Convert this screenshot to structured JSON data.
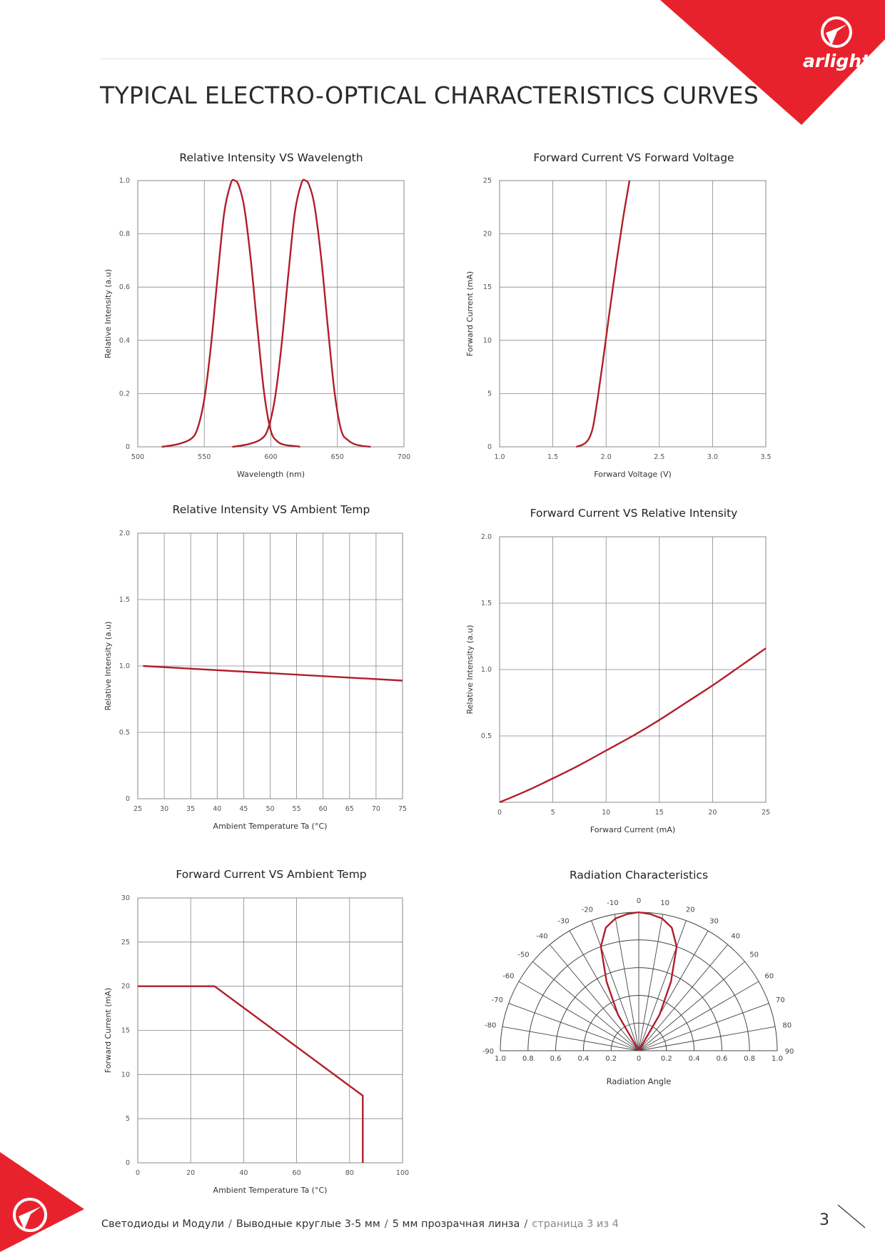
{
  "page": {
    "title": "TYPICAL ELECTRO-OPTICAL CHARACTERISTICS CURVES",
    "brand": "arlight",
    "brand_color": "#e8222c",
    "curve_color": "#b11e2a",
    "grid_color": "#888888"
  },
  "footer": {
    "part1": "Светодиоды и Модули",
    "part2": "Выводные круглые 3-5 мм",
    "part3": "5 мм прозрачная линза",
    "part4": "страница 3 из 4",
    "separator": "/",
    "page_number": "3"
  },
  "chart_data": [
    {
      "id": "wavelength",
      "type": "line",
      "title": "Relative Intensity VS Wavelength",
      "xlabel": "Wavelength (nm)",
      "ylabel": "Relative Intensity (a.u)",
      "xlim": [
        500,
        700
      ],
      "ylim": [
        0,
        1.0
      ],
      "x_ticks": [
        500,
        550,
        600,
        650,
        700
      ],
      "x_tick_labels": [
        "500",
        "550",
        "600",
        "650",
        "700"
      ],
      "y_ticks": [
        0,
        0.2,
        0.4,
        0.6,
        0.8,
        1.0
      ],
      "y_tick_labels": [
        "0",
        "0.2",
        "0.4",
        "0.6",
        "0.8",
        "1.0"
      ],
      "grid": true,
      "series": [
        {
          "x": [
            518,
            530,
            540,
            545,
            550,
            555,
            560,
            565,
            570,
            573,
            576,
            580,
            585,
            590,
            595,
            600,
            605,
            610,
            615,
            620,
            622
          ],
          "y": [
            0,
            0.01,
            0.03,
            0.07,
            0.18,
            0.38,
            0.64,
            0.88,
            0.99,
            1.0,
            0.98,
            0.9,
            0.7,
            0.44,
            0.2,
            0.06,
            0.02,
            0.008,
            0.004,
            0.002,
            0
          ]
        },
        {
          "x": [
            571,
            583,
            593,
            598,
            603,
            608,
            613,
            618,
            623,
            626,
            629,
            633,
            638,
            643,
            648,
            653,
            658,
            663,
            668,
            673,
            675
          ],
          "y": [
            0,
            0.01,
            0.03,
            0.07,
            0.18,
            0.38,
            0.64,
            0.88,
            0.99,
            1.0,
            0.98,
            0.9,
            0.7,
            0.44,
            0.2,
            0.06,
            0.025,
            0.01,
            0.004,
            0.001,
            0
          ]
        }
      ]
    },
    {
      "id": "iv",
      "type": "line",
      "title": "Forward Current VS Forward Voltage",
      "xlabel": "Forward Voltage (V)",
      "ylabel": "Forward Current (mA)",
      "xlim": [
        1.0,
        3.5
      ],
      "ylim": [
        0,
        25
      ],
      "x_ticks": [
        1.0,
        1.5,
        2.0,
        2.5,
        3.0,
        3.5
      ],
      "x_tick_labels": [
        "1.0",
        "1.5",
        "2.0",
        "2.5",
        "3.0",
        "3.5"
      ],
      "y_ticks": [
        0,
        5,
        10,
        15,
        20,
        25
      ],
      "y_tick_labels": [
        "0",
        "5",
        "10",
        "15",
        "20",
        "25"
      ],
      "grid": true,
      "series": [
        {
          "x": [
            1.72,
            1.78,
            1.82,
            1.85,
            1.88,
            1.92,
            1.97,
            2.03,
            2.1,
            2.16,
            2.22
          ],
          "y": [
            0,
            0.2,
            0.5,
            1.0,
            2.0,
            4.5,
            8.0,
            12.5,
            17.5,
            21.5,
            25
          ]
        }
      ]
    },
    {
      "id": "temp_intensity",
      "type": "line",
      "title": "Relative Intensity VS Ambient Temp",
      "xlabel": "Ambient Temperature Ta (°C)",
      "ylabel": "Relative Intensity (a.u)",
      "xlim": [
        25,
        75
      ],
      "ylim": [
        0,
        2.0
      ],
      "x_ticks": [
        25,
        30,
        35,
        40,
        45,
        50,
        55,
        60,
        65,
        70,
        75
      ],
      "x_tick_labels": [
        "25",
        "30",
        "35",
        "40",
        "45",
        "50",
        "55",
        "60",
        "65",
        "70",
        "75"
      ],
      "y_ticks": [
        0,
        0.5,
        1.0,
        1.5,
        2.0
      ],
      "y_tick_labels": [
        "0",
        "0.5",
        "1.0",
        "1.5",
        "2.0"
      ],
      "grid": true,
      "series": [
        {
          "x": [
            26,
            75
          ],
          "y": [
            1.0,
            0.89
          ]
        }
      ]
    },
    {
      "id": "current_intensity",
      "type": "line",
      "title": "Forward Current VS Relative Intensity",
      "xlabel": "Forward Current (mA)",
      "ylabel": "Relative Intensity (a.u)",
      "xlim": [
        0,
        25
      ],
      "ylim": [
        0,
        2.0
      ],
      "x_ticks": [
        0,
        5,
        10,
        15,
        20,
        25
      ],
      "x_tick_labels": [
        "0",
        "5",
        "10",
        "15",
        "20",
        "25"
      ],
      "y_ticks": [
        0.5,
        1.0,
        1.5,
        2.0
      ],
      "y_tick_labels": [
        "0.5",
        "1.0",
        "1.5",
        "2.0"
      ],
      "grid": true,
      "series": [
        {
          "x": [
            0,
            2.5,
            5,
            7.5,
            10,
            12.5,
            15,
            17.5,
            20,
            22.5,
            25
          ],
          "y": [
            0,
            0.085,
            0.18,
            0.28,
            0.39,
            0.5,
            0.62,
            0.75,
            0.88,
            1.02,
            1.16
          ]
        }
      ]
    },
    {
      "id": "derating",
      "type": "line",
      "title": "Forward Current VS Ambient Temp",
      "xlabel": "Ambient Temperature Ta (°C)",
      "ylabel": "Forward Current (mA)",
      "xlim": [
        0,
        100
      ],
      "ylim": [
        0,
        30
      ],
      "x_ticks": [
        0,
        20,
        40,
        60,
        80,
        100
      ],
      "x_tick_labels": [
        "0",
        "20",
        "40",
        "60",
        "80",
        "100"
      ],
      "y_ticks": [
        0,
        5,
        10,
        15,
        20,
        25,
        30
      ],
      "y_tick_labels": [
        "0",
        "5",
        "10",
        "15",
        "20",
        "25",
        "30"
      ],
      "grid": true,
      "series": [
        {
          "x": [
            0,
            29,
            85,
            85
          ],
          "y": [
            20,
            20,
            7.6,
            0
          ]
        }
      ]
    },
    {
      "id": "radiation",
      "type": "polar",
      "title": "Radiation Characteristics",
      "xlabel": "Radiation Angle",
      "angle_ticks": [
        -90,
        -80,
        -70,
        -60,
        -50,
        -40,
        -30,
        -20,
        -10,
        0,
        10,
        20,
        30,
        40,
        50,
        60,
        70,
        80,
        90
      ],
      "angle_tick_labels": [
        "-90",
        "-80",
        "-70",
        "-60",
        "-50",
        "-40",
        "-30",
        "-20",
        "-10",
        "0",
        "10",
        "20",
        "30",
        "40",
        "50",
        "60",
        "70",
        "80",
        "90"
      ],
      "radial_ticks": [
        1.0,
        0.8,
        0.6,
        0.4,
        0.2,
        0,
        0.2,
        0.4,
        0.6,
        0.8,
        1.0
      ],
      "radial_tick_labels": [
        "1.0",
        "0.8",
        "0.6",
        "0.4",
        "0.2",
        "0",
        "0.2",
        "0.4",
        "0.6",
        "0.8",
        "1.0"
      ],
      "series": [
        {
          "angle": [
            -90,
            -40,
            -30,
            -25,
            -20,
            -15,
            -10,
            -5,
            0,
            5,
            10,
            15,
            20,
            25,
            30,
            40,
            90
          ],
          "r": [
            0,
            0,
            0.3,
            0.55,
            0.8,
            0.92,
            0.97,
            0.99,
            1.0,
            0.99,
            0.97,
            0.92,
            0.8,
            0.55,
            0.3,
            0,
            0
          ]
        }
      ]
    }
  ]
}
